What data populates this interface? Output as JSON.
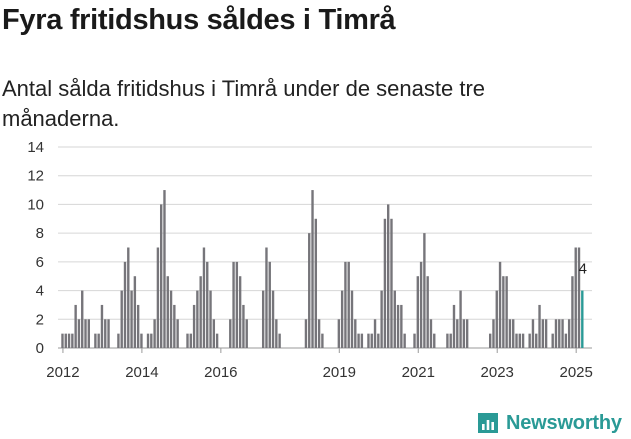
{
  "header": {
    "title": "Fyra fritidshus såldes i Timrå",
    "subtitle": "Antal sålda fritidshus i Timrå under de senaste tre månaderna."
  },
  "brand": {
    "name": "Newsworthy",
    "color": "#2a9a96"
  },
  "chart_data": {
    "type": "bar",
    "title": "Fyra fritidshus såldes i Timrå",
    "subtitle": "Antal sålda fritidshus i Timrå under de senaste tre månaderna.",
    "xlabel": "",
    "ylabel": "",
    "ylim": [
      0,
      14
    ],
    "y_ticks": [
      0,
      2,
      4,
      6,
      8,
      10,
      12,
      14
    ],
    "x_tick_labels": [
      "2012",
      "2014",
      "2016",
      "2019",
      "2021",
      "2023",
      "2025"
    ],
    "grid": true,
    "bar_color": "#76757a",
    "highlight_color": "#2a9a96",
    "start": "2011-12",
    "series": [
      {
        "name": "Antal sålda fritidshus",
        "values": [
          null,
          1,
          1,
          1,
          1,
          3,
          2,
          4,
          2,
          2,
          null,
          1,
          1,
          3,
          2,
          2,
          null,
          null,
          1,
          4,
          6,
          7,
          4,
          5,
          3,
          1,
          null,
          1,
          1,
          2,
          7,
          10,
          11,
          5,
          4,
          3,
          2,
          null,
          null,
          1,
          1,
          3,
          4,
          5,
          7,
          6,
          4,
          2,
          1,
          null,
          null,
          null,
          2,
          6,
          6,
          5,
          3,
          2,
          null,
          null,
          null,
          null,
          4,
          7,
          6,
          4,
          2,
          1,
          null,
          null,
          null,
          null,
          null,
          null,
          null,
          2,
          8,
          11,
          9,
          2,
          1,
          null,
          null,
          null,
          null,
          2,
          4,
          6,
          6,
          4,
          2,
          1,
          1,
          null,
          1,
          1,
          2,
          1,
          4,
          9,
          10,
          9,
          4,
          3,
          3,
          1,
          null,
          null,
          1,
          5,
          6,
          8,
          5,
          2,
          1,
          null,
          null,
          null,
          1,
          1,
          3,
          2,
          4,
          2,
          2,
          null,
          null,
          null,
          null,
          null,
          null,
          1,
          2,
          4,
          6,
          5,
          5,
          2,
          2,
          1,
          1,
          1,
          null,
          1,
          2,
          1,
          3,
          2,
          2,
          null,
          1,
          2,
          2,
          2,
          1,
          2,
          5,
          7,
          7,
          4
        ],
        "highlight_last": true,
        "last_value_label": "4"
      }
    ]
  }
}
